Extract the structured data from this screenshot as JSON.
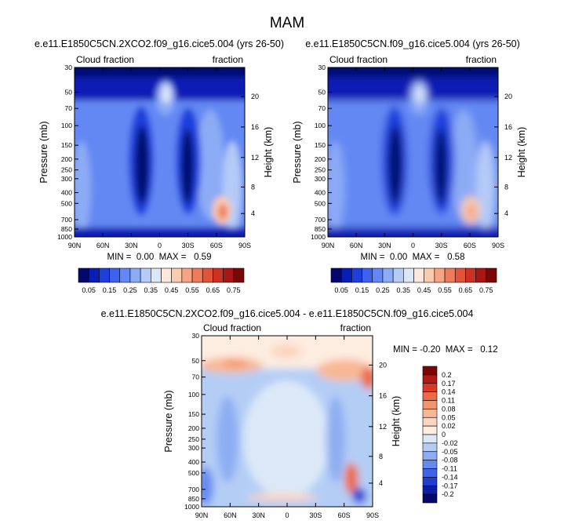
{
  "page": {
    "title": "MAM"
  },
  "chart_data": [
    {
      "type": "heatmap",
      "title": "e.e11.E1850C5CN.2XCO2.f09_g16.cice5.004 (yrs 26-50)",
      "left_label": "Cloud fraction",
      "right_label": "fraction",
      "xlabel": "",
      "ylabel": "Pressure (mb)",
      "y2label": "Height (km)",
      "x_ticks": [
        "90N",
        "60N",
        "30N",
        "0",
        "30S",
        "60S",
        "90S"
      ],
      "y_ticks": [
        30,
        50,
        70,
        100,
        150,
        200,
        250,
        300,
        400,
        500,
        700,
        850,
        1000
      ],
      "y2_ticks": [
        20,
        16,
        12,
        8,
        4
      ],
      "ylim": [
        30,
        1000
      ],
      "y_scale": "log",
      "stats": "MIN =  0.00  MAX =   0.59",
      "min": 0.0,
      "max": 0.59,
      "colorbar": {
        "labels": [
          "0.05",
          "0.15",
          "0.25",
          "0.35",
          "0.45",
          "0.55",
          "0.65",
          "0.75"
        ],
        "levels": [
          0.05,
          0.1,
          0.15,
          0.2,
          0.25,
          0.3,
          0.35,
          0.4,
          0.45,
          0.5,
          0.55,
          0.6,
          0.65,
          0.7,
          0.75
        ],
        "colors": [
          "#03076e",
          "#0a1eb4",
          "#1f3fdd",
          "#3f62ee",
          "#6488f3",
          "#8cabf5",
          "#b4cbf7",
          "#dbe6f7",
          "#fde9dc",
          "#fbcbb0",
          "#f6a483",
          "#ee7c5a",
          "#e2543a",
          "#cc3224",
          "#a81616",
          "#7a0606"
        ],
        "placement": "bottom"
      }
    },
    {
      "type": "heatmap",
      "title": "e.e11.E1850C5CN.f09_g16.cice5.004 (yrs 26-50)",
      "left_label": "Cloud fraction",
      "right_label": "fraction",
      "xlabel": "",
      "ylabel": "Pressure (mb)",
      "y2label": "Height (km)",
      "x_ticks": [
        "90N",
        "60N",
        "30N",
        "0",
        "30S",
        "60S",
        "90S"
      ],
      "y_ticks": [
        30,
        50,
        70,
        100,
        150,
        200,
        250,
        300,
        400,
        500,
        700,
        850,
        1000
      ],
      "y2_ticks": [
        20,
        16,
        12,
        8,
        4
      ],
      "ylim": [
        30,
        1000
      ],
      "y_scale": "log",
      "stats": "MIN =  0.00  MAX =   0.58",
      "min": 0.0,
      "max": 0.58,
      "colorbar": {
        "labels": [
          "0.05",
          "0.15",
          "0.25",
          "0.35",
          "0.45",
          "0.55",
          "0.65",
          "0.75"
        ],
        "levels": [
          0.05,
          0.1,
          0.15,
          0.2,
          0.25,
          0.3,
          0.35,
          0.4,
          0.45,
          0.5,
          0.55,
          0.6,
          0.65,
          0.7,
          0.75
        ],
        "colors": [
          "#03076e",
          "#0a1eb4",
          "#1f3fdd",
          "#3f62ee",
          "#6488f3",
          "#8cabf5",
          "#b4cbf7",
          "#dbe6f7",
          "#fde9dc",
          "#fbcbb0",
          "#f6a483",
          "#ee7c5a",
          "#e2543a",
          "#cc3224",
          "#a81616",
          "#7a0606"
        ],
        "placement": "bottom"
      }
    },
    {
      "type": "heatmap",
      "title": "e.e11.E1850C5CN.2XCO2.f09_g16.cice5.004 - e.e11.E1850C5CN.f09_g16.cice5.004",
      "left_label": "Cloud fraction",
      "right_label": "fraction",
      "xlabel": "",
      "ylabel": "Pressure (mb)",
      "y2label": "Height (km)",
      "x_ticks": [
        "90N",
        "60N",
        "30N",
        "0",
        "30S",
        "60S",
        "90S"
      ],
      "y_ticks": [
        30,
        50,
        70,
        100,
        150,
        200,
        250,
        300,
        400,
        500,
        700,
        850,
        1000
      ],
      "y2_ticks": [
        20,
        16,
        12,
        8,
        4
      ],
      "ylim": [
        30,
        1000
      ],
      "y_scale": "log",
      "stats": "MIN = -0.20  MAX =   0.12",
      "min": -0.2,
      "max": 0.12,
      "colorbar": {
        "labels": [
          "0.2",
          "0.17",
          "0.14",
          "0.11",
          "0.08",
          "0.05",
          "0.02",
          "0",
          "-0.02",
          "-0.05",
          "-0.08",
          "-0.11",
          "-0.14",
          "-0.17",
          "-0.2"
        ],
        "colors": [
          "#7a0606",
          "#b01a12",
          "#d63a25",
          "#ec6a45",
          "#f4946c",
          "#f8b895",
          "#fbd5bf",
          "#fdece0",
          "#dbe8f8",
          "#b4cdf5",
          "#8cadf2",
          "#6489ef",
          "#3f63e6",
          "#1f3fd4",
          "#0a1eaa",
          "#03076e"
        ],
        "placement": "right"
      }
    }
  ]
}
